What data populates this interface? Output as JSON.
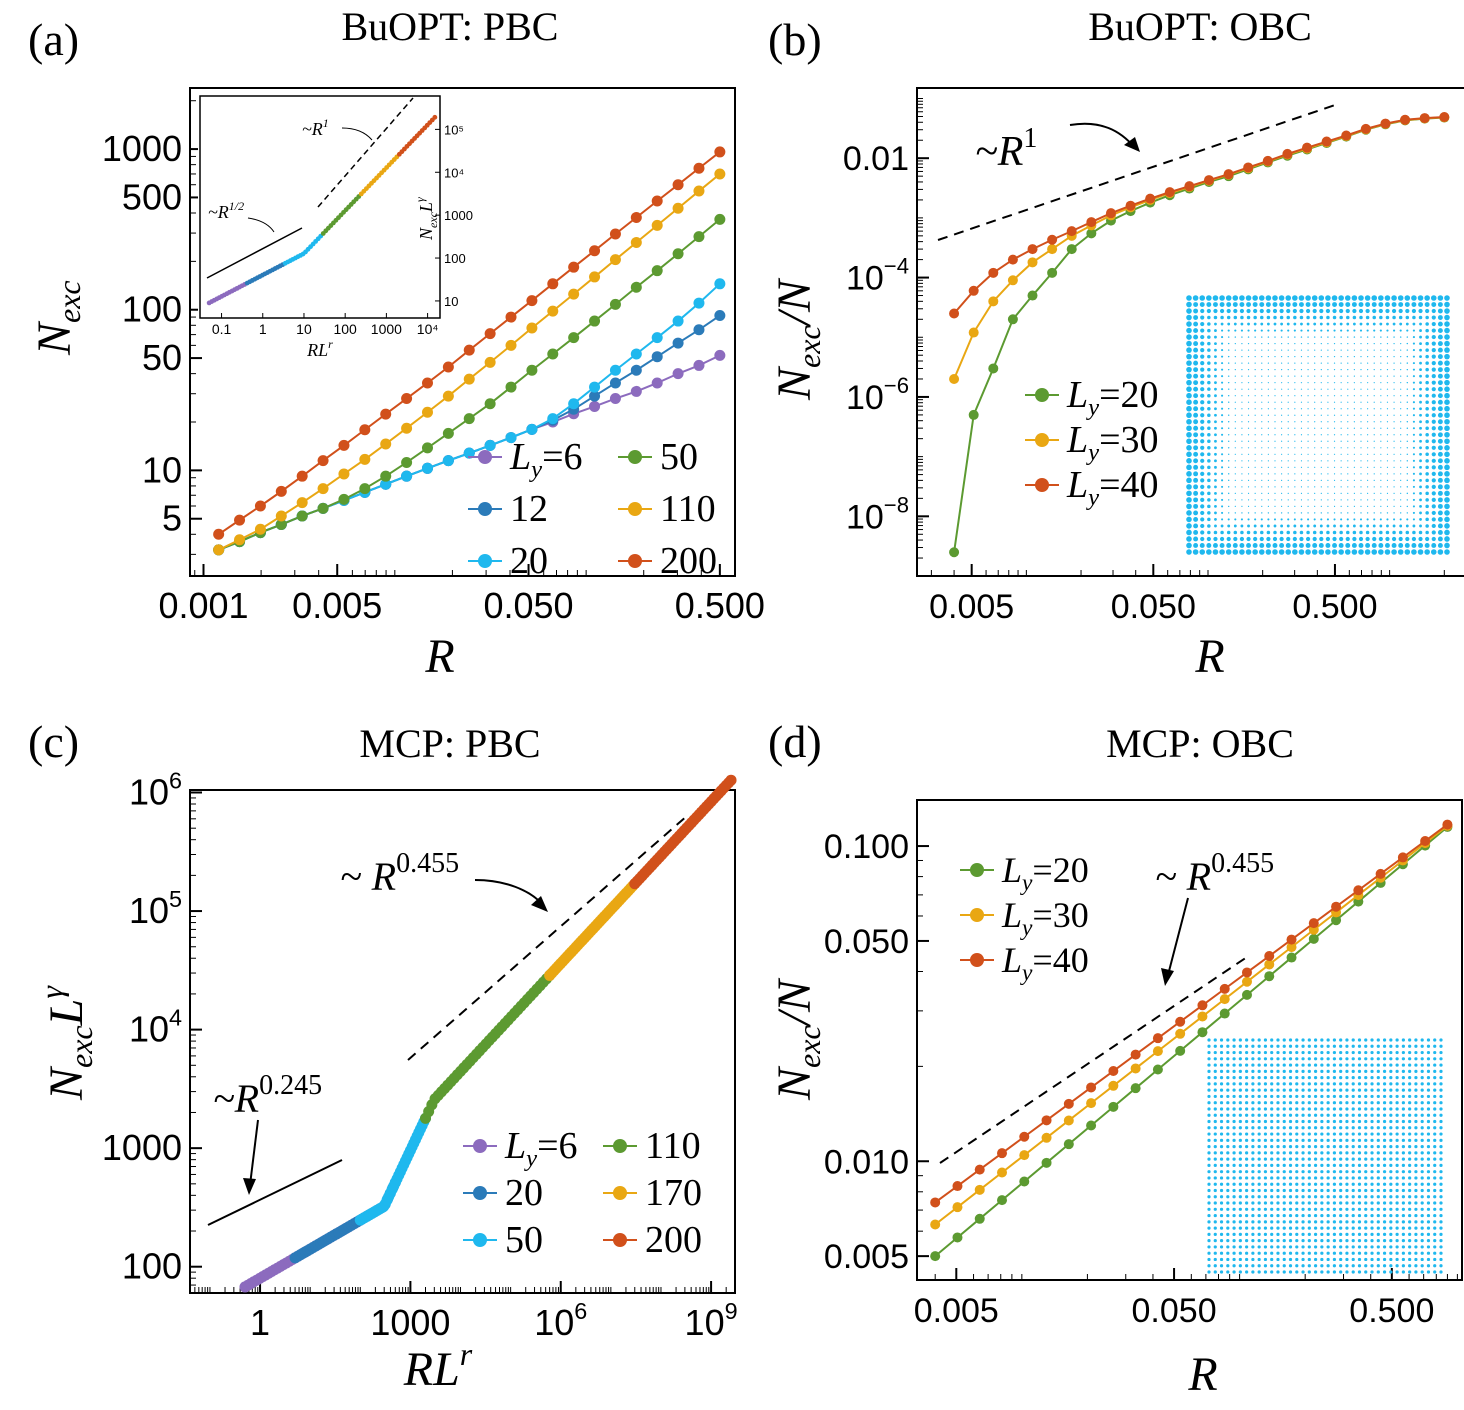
{
  "figure": {
    "series_colors": {
      "Ly6": "#8C6BBE",
      "Ly12": "#2B7BB9",
      "Ly20": "#1FB8EE",
      "Ly50": "#5C9A31",
      "Ly110": "#E9A713",
      "Ly200": "#D1501B",
      "Ly170": "#E9A713",
      "green": "#5C9A31",
      "orange": "#E9A713",
      "red": "#D1501B",
      "blue": "#1FB8EE",
      "purple": "#8C6BBE",
      "darkblue": "#2B7BB9"
    }
  },
  "chart_data": [
    {
      "id": "a",
      "type": "line",
      "panel_label": "(a)",
      "title": "BuOPT: PBC",
      "xlabel": "R",
      "ylabel": "N_exc",
      "xscale": "log",
      "yscale": "log",
      "xlim": [
        0.00085,
        0.6
      ],
      "ylim": [
        2.2,
        2400
      ],
      "xticks": [
        {
          "v": 0.001,
          "t": "0.001"
        },
        {
          "v": 0.005,
          "t": "0.005"
        },
        {
          "v": 0.05,
          "t": "0.050"
        },
        {
          "v": 0.5,
          "t": "0.500"
        }
      ],
      "yticks": [
        {
          "v": 5,
          "t": "5"
        },
        {
          "v": 10,
          "t": "10"
        },
        {
          "v": 50,
          "t": "50"
        },
        {
          "v": 100,
          "t": "100"
        },
        {
          "v": 500,
          "t": "500"
        },
        {
          "v": 1000,
          "t": "1000"
        }
      ],
      "legend": {
        "position": "lower-right",
        "columns": 2,
        "entries": [
          {
            "name": "Ly=6",
            "c": "#8C6BBE"
          },
          {
            "name": "50",
            "c": "#5C9A31"
          },
          {
            "name": "12",
            "c": "#2B7BB9"
          },
          {
            "name": "110",
            "c": "#E9A713"
          },
          {
            "name": "20",
            "c": "#1FB8EE"
          },
          {
            "name": "200",
            "c": "#D1501B"
          }
        ]
      },
      "series": [
        {
          "name": "Ly=6",
          "color": "#8C6BBE",
          "x_range": [
            0.0012,
            0.5
          ],
          "n": 25,
          "y": [
            3.2,
            3.6,
            4.1,
            4.6,
            5.2,
            5.8,
            6.5,
            7.3,
            8.2,
            9.2,
            10.3,
            11.5,
            12.8,
            14.3,
            16,
            18,
            20,
            22.5,
            25,
            28,
            31,
            35,
            40,
            45,
            52
          ]
        },
        {
          "name": "12",
          "color": "#2B7BB9",
          "x_range": [
            0.0012,
            0.5
          ],
          "n": 25,
          "y": [
            3.2,
            3.6,
            4.1,
            4.6,
            5.2,
            5.8,
            6.5,
            7.3,
            8.2,
            9.2,
            10.3,
            11.5,
            12.8,
            14.3,
            16,
            18,
            20.5,
            24,
            29,
            35,
            42,
            51,
            62,
            75,
            92
          ]
        },
        {
          "name": "20",
          "color": "#1FB8EE",
          "x_range": [
            0.0012,
            0.5
          ],
          "n": 25,
          "y": [
            3.2,
            3.6,
            4.1,
            4.6,
            5.2,
            5.8,
            6.5,
            7.3,
            8.2,
            9.2,
            10.3,
            11.5,
            12.8,
            14.3,
            16,
            18,
            21,
            26,
            33,
            42,
            53,
            67,
            85,
            110,
            145
          ]
        },
        {
          "name": "50",
          "color": "#5C9A31",
          "x_range": [
            0.0012,
            0.5
          ],
          "n": 25,
          "y": [
            3.2,
            3.6,
            4.1,
            4.6,
            5.2,
            5.8,
            6.6,
            7.7,
            9.2,
            11.2,
            13.8,
            17,
            21,
            26,
            33,
            42,
            53,
            67,
            85,
            108,
            138,
            175,
            223,
            285,
            365
          ]
        },
        {
          "name": "110",
          "color": "#E9A713",
          "x_range": [
            0.0012,
            0.5
          ],
          "n": 25,
          "y": [
            3.2,
            3.7,
            4.3,
            5.2,
            6.3,
            7.7,
            9.5,
            11.7,
            14.6,
            18.3,
            23,
            29,
            37,
            47,
            60,
            77,
            98,
            125,
            160,
            205,
            262,
            335,
            428,
            548,
            700
          ]
        },
        {
          "name": "200",
          "color": "#D1501B",
          "x_range": [
            0.0012,
            0.5
          ],
          "n": 25,
          "y": [
            4.0,
            4.9,
            6.0,
            7.4,
            9.2,
            11.5,
            14.3,
            17.9,
            22.4,
            28,
            35,
            44,
            56,
            71,
            90,
            114,
            145,
            184,
            233,
            296,
            375,
            475,
            600,
            760,
            960
          ]
        }
      ],
      "annotations": [],
      "inset": {
        "xscale": "log",
        "yscale": "log",
        "xlim": [
          0.03,
          20000
        ],
        "ylim": [
          4,
          600000
        ],
        "xlabel": "RL^r",
        "ylabel": "N_exc L^γ",
        "xticks": [
          {
            "v": 0.1,
            "t": "0.1"
          },
          {
            "v": 1,
            "t": "1"
          },
          {
            "v": 10,
            "t": "10"
          },
          {
            "v": 100,
            "t": "100"
          },
          {
            "v": 1000,
            "t": "1000"
          },
          {
            "v": 10000,
            "t": "10⁴"
          }
        ],
        "yticks": [
          {
            "v": 10,
            "t": "10"
          },
          {
            "v": 100,
            "t": "100"
          },
          {
            "v": 1000,
            "t": "1000"
          },
          {
            "v": 10000,
            "t": "10⁴"
          },
          {
            "v": 100000,
            "t": "10⁵"
          }
        ],
        "label_r_half": "~R^{1/2}",
        "label_r_one": "~R^1"
      }
    },
    {
      "id": "b",
      "type": "line",
      "panel_label": "(b)",
      "title": "BuOPT: OBC",
      "xlabel": "R",
      "ylabel": "N_exc/N",
      "xscale": "log",
      "yscale": "log",
      "xlim": [
        0.0025,
        2.6
      ],
      "ylim": [
        1e-09,
        0.15
      ],
      "xticks": [
        {
          "v": 0.005,
          "t": "0.005"
        },
        {
          "v": 0.05,
          "t": "0.050"
        },
        {
          "v": 0.5,
          "t": "0.500"
        }
      ],
      "yticks": [
        {
          "v": 1e-08,
          "t": "10",
          "e": "−8"
        },
        {
          "v": 1e-06,
          "t": "10",
          "e": "−6"
        },
        {
          "v": 0.0001,
          "t": "10",
          "e": "−4"
        },
        {
          "v": 0.01,
          "t": "0.01"
        }
      ],
      "legend": {
        "position": "center-left",
        "columns": 1,
        "entries": [
          {
            "name": "Ly=20",
            "c": "#5C9A31"
          },
          {
            "name": "Ly=30",
            "c": "#E9A713"
          },
          {
            "name": "Ly=40",
            "c": "#D1501B"
          }
        ]
      },
      "series": [
        {
          "name": "Ly=20",
          "color": "#5C9A31",
          "x_range": [
            0.004,
            2.0
          ],
          "n": 26,
          "y": [
            2.5e-09,
            5e-07,
            3e-06,
            2e-05,
            5e-05,
            0.00012,
            0.0003,
            0.00055,
            0.0009,
            0.0013,
            0.0018,
            0.0024,
            0.0031,
            0.004,
            0.005,
            0.0065,
            0.0085,
            0.011,
            0.014,
            0.018,
            0.023,
            0.03,
            0.037,
            0.043,
            0.046,
            0.048
          ]
        },
        {
          "name": "Ly=30",
          "color": "#E9A713",
          "x_range": [
            0.004,
            2.0
          ],
          "n": 26,
          "y": [
            2e-06,
            1.2e-05,
            4e-05,
            9e-05,
            0.00018,
            0.0003,
            0.0005,
            0.00075,
            0.0011,
            0.0015,
            0.002,
            0.0026,
            0.0033,
            0.0042,
            0.0053,
            0.0068,
            0.0088,
            0.0115,
            0.0145,
            0.0185,
            0.0235,
            0.0305,
            0.0375,
            0.0435,
            0.0465,
            0.0485
          ]
        },
        {
          "name": "Ly=40",
          "color": "#D1501B",
          "x_range": [
            0.004,
            2.0
          ],
          "n": 26,
          "y": [
            2.5e-05,
            6e-05,
            0.00012,
            0.0002,
            0.0003,
            0.00043,
            0.0006,
            0.00085,
            0.0012,
            0.0016,
            0.0021,
            0.0027,
            0.0034,
            0.0043,
            0.0054,
            0.007,
            0.009,
            0.0118,
            0.015,
            0.019,
            0.024,
            0.031,
            0.038,
            0.044,
            0.047,
            0.049
          ]
        }
      ],
      "annotations": [
        {
          "text": "~R^1"
        }
      ]
    },
    {
      "id": "c",
      "type": "scatter",
      "panel_label": "(c)",
      "title": "MCP: PBC",
      "xlabel": "RL^r",
      "ylabel": "N_exc L^γ",
      "xscale": "log",
      "yscale": "log",
      "xlim": [
        0.04,
        3000000000.0
      ],
      "ylim": [
        60,
        1050000.0
      ],
      "xticks": [
        {
          "v": 1,
          "t": "1"
        },
        {
          "v": 1000,
          "t": "1000"
        },
        {
          "v": 1000000.0,
          "t": "10",
          "e": "6"
        },
        {
          "v": 1000000000.0,
          "t": "10",
          "e": "9"
        }
      ],
      "yticks": [
        {
          "v": 100,
          "t": "100"
        },
        {
          "v": 1000,
          "t": "1000"
        },
        {
          "v": 10000,
          "t": "10",
          "e": "4"
        },
        {
          "v": 100000,
          "t": "10",
          "e": "5"
        },
        {
          "v": 1000000,
          "t": "10",
          "e": "6"
        }
      ],
      "legend": {
        "position": "lower-right",
        "columns": 2,
        "entries": [
          {
            "name": "Ly=6",
            "c": "#8C6BBE"
          },
          {
            "name": "110",
            "c": "#5C9A31"
          },
          {
            "name": "20",
            "c": "#2B7BB9"
          },
          {
            "name": "170",
            "c": "#E9A713"
          },
          {
            "name": "50",
            "c": "#1FB8EE"
          },
          {
            "name": "200",
            "c": "#D1501B"
          }
        ]
      },
      "series": [
        {
          "name": "Ly=6",
          "color": "#8C6BBE",
          "x_range": [
            0.5,
            100
          ],
          "y_power": 0.245,
          "y_at_1": 80
        },
        {
          "name": "20",
          "color": "#2B7BB9",
          "x_range": [
            5,
            500
          ],
          "y_power": 0.245,
          "y_at_1": 80
        },
        {
          "name": "50",
          "color": "#1FB8EE",
          "x_range": [
            100,
            2000
          ],
          "y_power": "crossover"
        },
        {
          "name": "110",
          "color": "#5C9A31",
          "x_range": [
            2000,
            600000.0
          ],
          "y_power": 0.455
        },
        {
          "name": "170",
          "color": "#E9A713",
          "x_range": [
            600000.0,
            30000000.0
          ],
          "y_power": 0.455
        },
        {
          "name": "200",
          "color": "#D1501B",
          "x_range": [
            30000000.0,
            2500000000.0
          ],
          "y_power": 0.455
        }
      ],
      "annotations": [
        {
          "text": "~R^0.245"
        },
        {
          "text": "~R^0.455"
        }
      ]
    },
    {
      "id": "d",
      "type": "line",
      "panel_label": "(d)",
      "title": "MCP: OBC",
      "xlabel": "R",
      "ylabel": "N_exc/N",
      "xscale": "log",
      "yscale": "log",
      "xlim": [
        0.0033,
        1.05
      ],
      "ylim": [
        0.0042,
        0.14
      ],
      "xticks": [
        {
          "v": 0.005,
          "t": "0.005"
        },
        {
          "v": 0.05,
          "t": "0.050"
        },
        {
          "v": 0.5,
          "t": "0.500"
        }
      ],
      "yticks": [
        {
          "v": 0.005,
          "t": "0.005"
        },
        {
          "v": 0.01,
          "t": "0.010"
        },
        {
          "v": 0.05,
          "t": "0.050"
        },
        {
          "v": 0.1,
          "t": "0.100"
        }
      ],
      "legend": {
        "position": "upper-left",
        "columns": 1,
        "entries": [
          {
            "name": "Ly=20",
            "c": "#5C9A31"
          },
          {
            "name": "Ly=30",
            "c": "#E9A713"
          },
          {
            "name": "Ly=40",
            "c": "#D1501B"
          }
        ]
      },
      "series": [
        {
          "name": "Ly=20",
          "color": "#5C9A31",
          "x_range": [
            0.004,
            0.9
          ],
          "n": 24,
          "y_start": 0.005,
          "y_end": 0.115
        },
        {
          "name": "Ly=30",
          "color": "#E9A713",
          "x_range": [
            0.004,
            0.9
          ],
          "n": 24,
          "y_start": 0.0063,
          "y_end": 0.116
        },
        {
          "name": "Ly=40",
          "color": "#D1501B",
          "x_range": [
            0.004,
            0.9
          ],
          "n": 24,
          "y_start": 0.0074,
          "y_end": 0.117
        }
      ],
      "annotations": [
        {
          "text": "~R^0.455"
        }
      ]
    }
  ]
}
